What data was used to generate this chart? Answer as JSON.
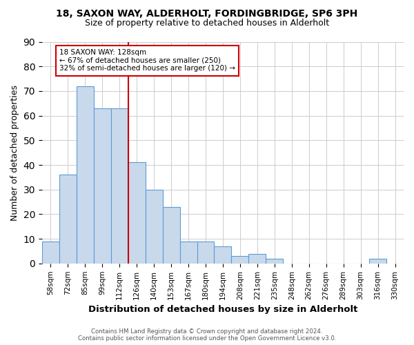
{
  "title1": "18, SAXON WAY, ALDERHOLT, FORDINGBRIDGE, SP6 3PH",
  "title2": "Size of property relative to detached houses in Alderholt",
  "xlabel": "Distribution of detached houses by size in Alderholt",
  "ylabel": "Number of detached properties",
  "footnote1": "Contains HM Land Registry data © Crown copyright and database right 2024.",
  "footnote2": "Contains public sector information licensed under the Open Government Licence v3.0.",
  "bin_labels": [
    "58sqm",
    "72sqm",
    "85sqm",
    "99sqm",
    "112sqm",
    "126sqm",
    "140sqm",
    "153sqm",
    "167sqm",
    "180sqm",
    "194sqm",
    "208sqm",
    "221sqm",
    "235sqm",
    "248sqm",
    "262sqm",
    "276sqm",
    "289sqm",
    "303sqm",
    "316sqm",
    "330sqm"
  ],
  "values": [
    9,
    36,
    72,
    63,
    63,
    41,
    30,
    23,
    9,
    9,
    7,
    3,
    4,
    2,
    0,
    0,
    0,
    0,
    0,
    2,
    0
  ],
  "bar_color": "#c9d9ec",
  "bar_edge_color": "#5b9bd5",
  "vline_color": "#cc0000",
  "vline_x_index": 5,
  "annotation_text": "18 SAXON WAY: 128sqm\n← 67% of detached houses are smaller (250)\n32% of semi-detached houses are larger (120) →",
  "ylim": [
    0,
    90
  ],
  "yticks": [
    0,
    10,
    20,
    30,
    40,
    50,
    60,
    70,
    80,
    90
  ],
  "background_color": "#ffffff",
  "grid_color": "#cccccc"
}
